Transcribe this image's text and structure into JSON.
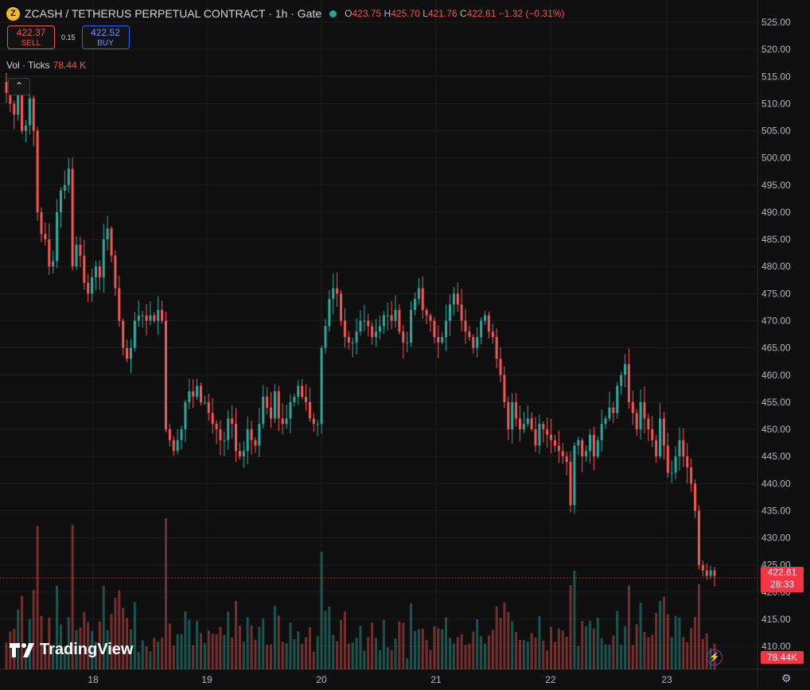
{
  "header": {
    "symbol_icon": "zcash-coin-icon",
    "coin_glyph": "Z",
    "title": "ZCASH / TETHERUS PERPETUAL CONTRACT · 1h · Gate",
    "status_icon": "market-open-dot-icon",
    "ohlc": {
      "o_label": "O",
      "o": "423.75",
      "h_label": "H",
      "h": "425.70",
      "l_label": "L",
      "l": "421.76",
      "c_label": "C",
      "c": "422.61",
      "change": "−1.32 (−0.31%)"
    }
  },
  "trade": {
    "sell_price": "422.37",
    "sell_label": "SELL",
    "spread": "0.15",
    "buy_price": "422.52",
    "buy_label": "BUY"
  },
  "volume_legend": {
    "label": "Vol · Ticks",
    "value": "78.44 K"
  },
  "collapse_icon": "chevron-up-icon",
  "collapse_glyph": "⌃",
  "branding": {
    "logo_icon": "tradingview-logo-icon",
    "logo_text": "TradingView"
  },
  "bolt_icon": "lightning-icon",
  "bolt_glyph": "⚡",
  "settings_icon": "gear-icon",
  "settings_glyph": "⚙",
  "colors": {
    "up": "#26a69a",
    "down": "#ef5350",
    "background": "#0f0f0f",
    "grid": "#1e1e1e",
    "badge": "#f23645"
  },
  "chart_data": {
    "type": "candlestick",
    "interval": "1h",
    "y_axis": {
      "ticks": [
        "525.00",
        "520.00",
        "515.00",
        "510.00",
        "505.00",
        "500.00",
        "495.00",
        "490.00",
        "485.00",
        "480.00",
        "475.00",
        "470.00",
        "465.00",
        "460.00",
        "455.00",
        "450.00",
        "445.00",
        "440.00",
        "435.00",
        "430.00",
        "425.00",
        "420.00",
        "415.00",
        "410.00"
      ],
      "range": [
        406,
        528
      ]
    },
    "x_axis": {
      "ticks": [
        "18",
        "19",
        "20",
        "21",
        "22",
        "23"
      ]
    },
    "current_price": {
      "value": "422.61",
      "countdown": "28:33"
    },
    "volume_value": "78.44K",
    "closes": [
      512,
      510,
      508,
      512,
      505,
      506,
      511,
      505,
      490,
      486,
      485,
      480,
      481,
      490,
      494,
      495,
      498,
      480,
      484,
      482,
      477,
      475,
      478,
      480,
      478,
      485,
      487,
      482,
      476,
      470,
      465,
      463,
      465,
      470,
      471,
      471,
      470,
      471,
      470,
      472,
      470,
      450,
      448,
      446,
      448,
      450,
      455,
      457,
      456,
      458,
      455,
      455,
      453,
      451,
      450,
      448,
      448,
      452,
      451,
      446,
      445,
      446,
      450,
      448,
      447,
      451,
      456,
      454,
      452,
      457,
      452,
      451,
      452,
      455,
      456,
      458,
      456,
      455,
      452,
      451,
      451,
      465,
      469,
      474,
      476,
      475,
      470,
      467,
      466,
      466,
      468,
      470,
      470,
      469,
      467,
      468,
      469,
      471,
      471,
      470,
      472,
      468,
      466,
      466,
      472,
      474,
      476,
      472,
      471,
      470,
      467,
      466,
      467,
      470,
      473,
      475,
      473,
      470,
      468,
      467,
      465,
      467,
      470,
      471,
      468,
      467,
      463,
      460,
      455,
      450,
      455,
      452,
      450,
      451,
      452,
      450,
      447,
      451,
      450,
      449,
      448,
      447,
      446,
      445,
      444,
      436,
      447,
      448,
      445,
      446,
      449,
      445,
      448,
      451,
      452,
      454,
      453,
      458,
      460,
      462,
      455,
      453,
      450,
      455,
      452,
      450,
      448,
      445,
      452,
      447,
      442,
      442,
      445,
      448,
      445,
      443,
      440,
      435,
      425,
      424,
      423,
      424,
      423
    ]
  }
}
